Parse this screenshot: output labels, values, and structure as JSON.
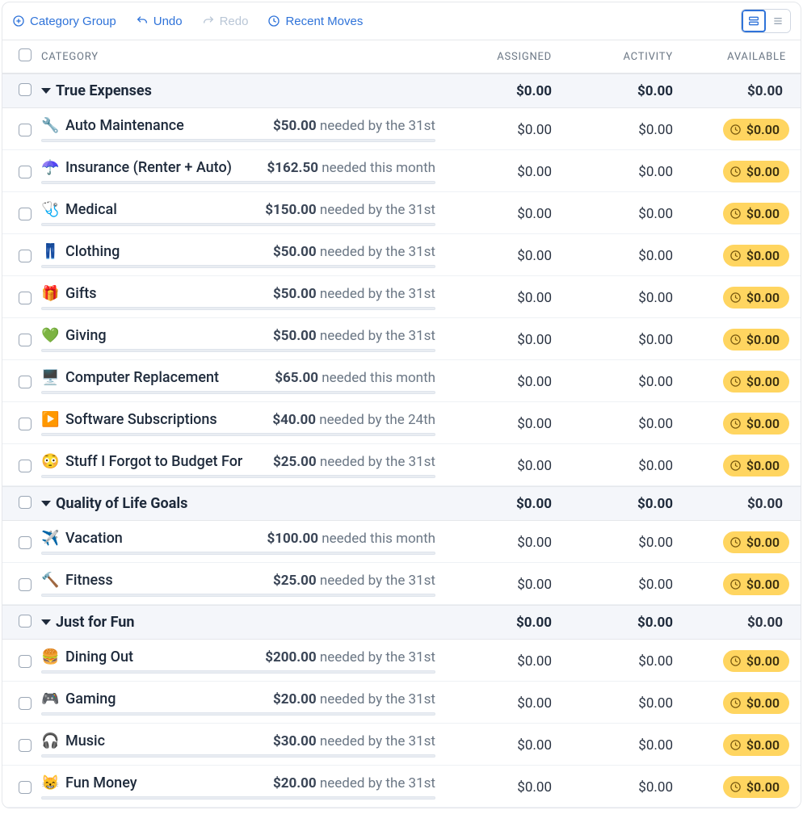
{
  "toolbar": {
    "category_group": "Category Group",
    "undo": "Undo",
    "redo": "Redo",
    "recent_moves": "Recent Moves"
  },
  "columns": {
    "category": "CATEGORY",
    "assigned": "ASSIGNED",
    "activity": "ACTIVITY",
    "available": "AVAILABLE"
  },
  "colors": {
    "link": "#2f73d9",
    "disabled": "#b9c6d6",
    "text": "#1e2a3b",
    "muted": "#6b7785",
    "group_bg": "#f4f6fa",
    "border": "#e5e7eb",
    "pill_bg": "#ffd560",
    "pill_text": "#3a2f10",
    "progress_bg": "#e9edf2"
  },
  "groups": [
    {
      "name": "True Expenses",
      "assigned": "$0.00",
      "activity": "$0.00",
      "available": "$0.00",
      "items": [
        {
          "emoji": "🔧",
          "name": "Auto Maintenance",
          "need_amount": "$50.00",
          "need_text": "needed by the 31st",
          "assigned": "$0.00",
          "activity": "$0.00",
          "available": "$0.00",
          "underfunded": true
        },
        {
          "emoji": "☂️",
          "name": "Insurance (Renter + Auto)",
          "need_amount": "$162.50",
          "need_text": "needed this month",
          "assigned": "$0.00",
          "activity": "$0.00",
          "available": "$0.00",
          "underfunded": true
        },
        {
          "emoji": "🩺",
          "name": "Medical",
          "need_amount": "$150.00",
          "need_text": "needed by the 31st",
          "assigned": "$0.00",
          "activity": "$0.00",
          "available": "$0.00",
          "underfunded": true
        },
        {
          "emoji": "👖",
          "name": "Clothing",
          "need_amount": "$50.00",
          "need_text": "needed by the 31st",
          "assigned": "$0.00",
          "activity": "$0.00",
          "available": "$0.00",
          "underfunded": true
        },
        {
          "emoji": "🎁",
          "name": "Gifts",
          "need_amount": "$50.00",
          "need_text": "needed by the 31st",
          "assigned": "$0.00",
          "activity": "$0.00",
          "available": "$0.00",
          "underfunded": true
        },
        {
          "emoji": "💚",
          "name": "Giving",
          "need_amount": "$50.00",
          "need_text": "needed by the 31st",
          "assigned": "$0.00",
          "activity": "$0.00",
          "available": "$0.00",
          "underfunded": true
        },
        {
          "emoji": "🖥️",
          "name": "Computer Replacement",
          "need_amount": "$65.00",
          "need_text": "needed this month",
          "assigned": "$0.00",
          "activity": "$0.00",
          "available": "$0.00",
          "underfunded": true
        },
        {
          "emoji": "▶️",
          "name": "Software Subscriptions",
          "need_amount": "$40.00",
          "need_text": "needed by the 24th",
          "assigned": "$0.00",
          "activity": "$0.00",
          "available": "$0.00",
          "underfunded": true
        },
        {
          "emoji": "😳",
          "name": "Stuff I Forgot to Budget For",
          "need_amount": "$25.00",
          "need_text": "needed by the 31st",
          "assigned": "$0.00",
          "activity": "$0.00",
          "available": "$0.00",
          "underfunded": true
        }
      ]
    },
    {
      "name": "Quality of Life Goals",
      "assigned": "$0.00",
      "activity": "$0.00",
      "available": "$0.00",
      "items": [
        {
          "emoji": "✈️",
          "name": "Vacation",
          "need_amount": "$100.00",
          "need_text": "needed this month",
          "assigned": "$0.00",
          "activity": "$0.00",
          "available": "$0.00",
          "underfunded": true
        },
        {
          "emoji": "🔨",
          "name": "Fitness",
          "need_amount": "$25.00",
          "need_text": "needed by the 31st",
          "assigned": "$0.00",
          "activity": "$0.00",
          "available": "$0.00",
          "underfunded": true
        }
      ]
    },
    {
      "name": "Just for Fun",
      "assigned": "$0.00",
      "activity": "$0.00",
      "available": "$0.00",
      "items": [
        {
          "emoji": "🍔",
          "name": "Dining Out",
          "need_amount": "$200.00",
          "need_text": "needed by the 31st",
          "assigned": "$0.00",
          "activity": "$0.00",
          "available": "$0.00",
          "underfunded": true
        },
        {
          "emoji": "🎮",
          "name": "Gaming",
          "need_amount": "$20.00",
          "need_text": "needed by the 31st",
          "assigned": "$0.00",
          "activity": "$0.00",
          "available": "$0.00",
          "underfunded": true
        },
        {
          "emoji": "🎧",
          "name": "Music",
          "need_amount": "$30.00",
          "need_text": "needed by the 31st",
          "assigned": "$0.00",
          "activity": "$0.00",
          "available": "$0.00",
          "underfunded": true
        },
        {
          "emoji": "😸",
          "name": "Fun Money",
          "need_amount": "$20.00",
          "need_text": "needed by the 31st",
          "assigned": "$0.00",
          "activity": "$0.00",
          "available": "$0.00",
          "underfunded": true
        }
      ]
    }
  ]
}
